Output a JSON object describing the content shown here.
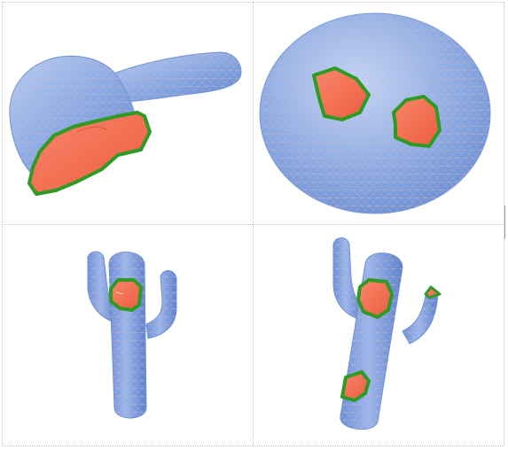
{
  "colors": {
    "mesh_fill": "#86a6e2",
    "mesh_light": "#b7cdf5",
    "mesh_dark": "#5f84cf",
    "wire": "#c9b9c9",
    "segment_fill": "#f46b4f",
    "segment_border": "#2f9a24",
    "grid_line": "#c4c4c4"
  },
  "panels": [
    {
      "shape": "cap",
      "highlighted_regions": 1
    },
    {
      "shape": "ellipsoid",
      "highlighted_regions": 2
    },
    {
      "shape": "cactus",
      "highlighted_regions": 1
    },
    {
      "shape": "cactus-tilted",
      "highlighted_regions": 3
    }
  ]
}
